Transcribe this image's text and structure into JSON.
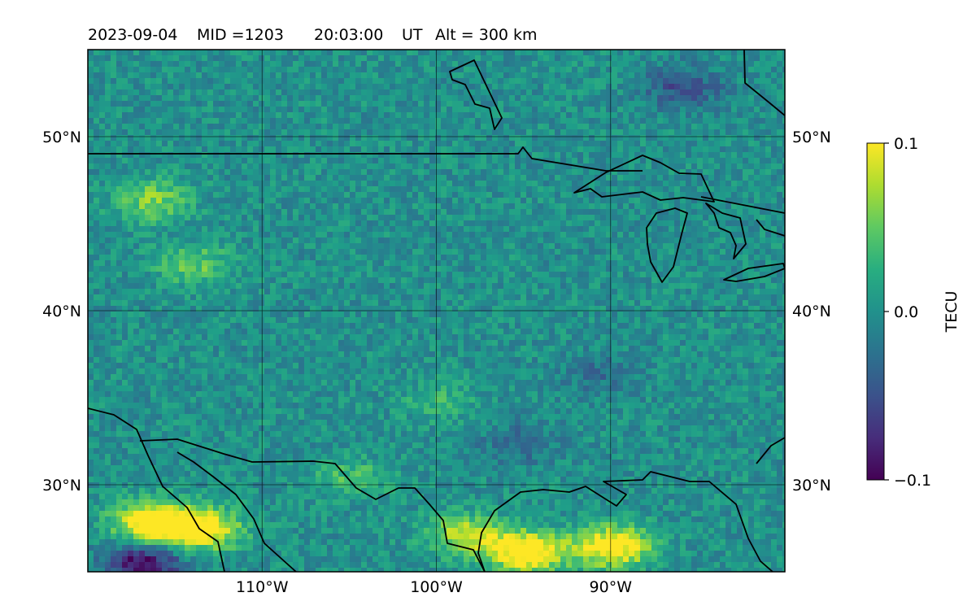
{
  "title": {
    "date": "2023-09-04",
    "mid": "MID =1203",
    "time": "20:03:00",
    "ut": "UT",
    "alt": "Alt = 300 km"
  },
  "map": {
    "lon_range": [
      -120,
      -80
    ],
    "lat_range": [
      25,
      55
    ],
    "gridlines": true,
    "lon_ticks": [
      {
        "value": -110,
        "label": "110°W"
      },
      {
        "value": -100,
        "label": "100°W"
      },
      {
        "value": -90,
        "label": "90°W"
      }
    ],
    "lat_ticks": [
      {
        "value": 50,
        "label": "50°N"
      },
      {
        "value": 40,
        "label": "40°N"
      },
      {
        "value": 30,
        "label": "30°N"
      }
    ]
  },
  "colorbar": {
    "label": "TECU",
    "colormap": "viridis",
    "vmin": -0.1,
    "vmax": 0.1,
    "ticks": [
      {
        "value": 0.1,
        "label": "0.1"
      },
      {
        "value": 0.0,
        "label": "0.0"
      },
      {
        "value": -0.1,
        "label": "−0.1"
      }
    ]
  },
  "field": {
    "description_values": "detrended TEC perturbation",
    "background_value": 0.0,
    "hotspots": [
      {
        "lon": -116.5,
        "lat": 28.0,
        "value": 0.13
      },
      {
        "lon": -113.5,
        "lat": 27.6,
        "value": 0.11
      },
      {
        "lon": -95.0,
        "lat": 26.3,
        "value": 0.13
      },
      {
        "lon": -90.0,
        "lat": 26.6,
        "value": 0.12
      },
      {
        "lon": -98.5,
        "lat": 27.3,
        "value": 0.08
      },
      {
        "lon": -116.5,
        "lat": 46.5,
        "value": 0.06
      },
      {
        "lon": -114.0,
        "lat": 42.8,
        "value": 0.05
      },
      {
        "lon": -100.0,
        "lat": 35.0,
        "value": 0.03
      },
      {
        "lon": -105.0,
        "lat": 30.5,
        "value": 0.04
      }
    ],
    "coldspots": [
      {
        "lon": -117.0,
        "lat": 25.6,
        "value": -0.1
      },
      {
        "lon": -86.0,
        "lat": 53.0,
        "value": -0.05
      },
      {
        "lon": -95.5,
        "lat": 32.5,
        "value": -0.03
      },
      {
        "lon": -91.0,
        "lat": 36.5,
        "value": -0.025
      }
    ]
  }
}
